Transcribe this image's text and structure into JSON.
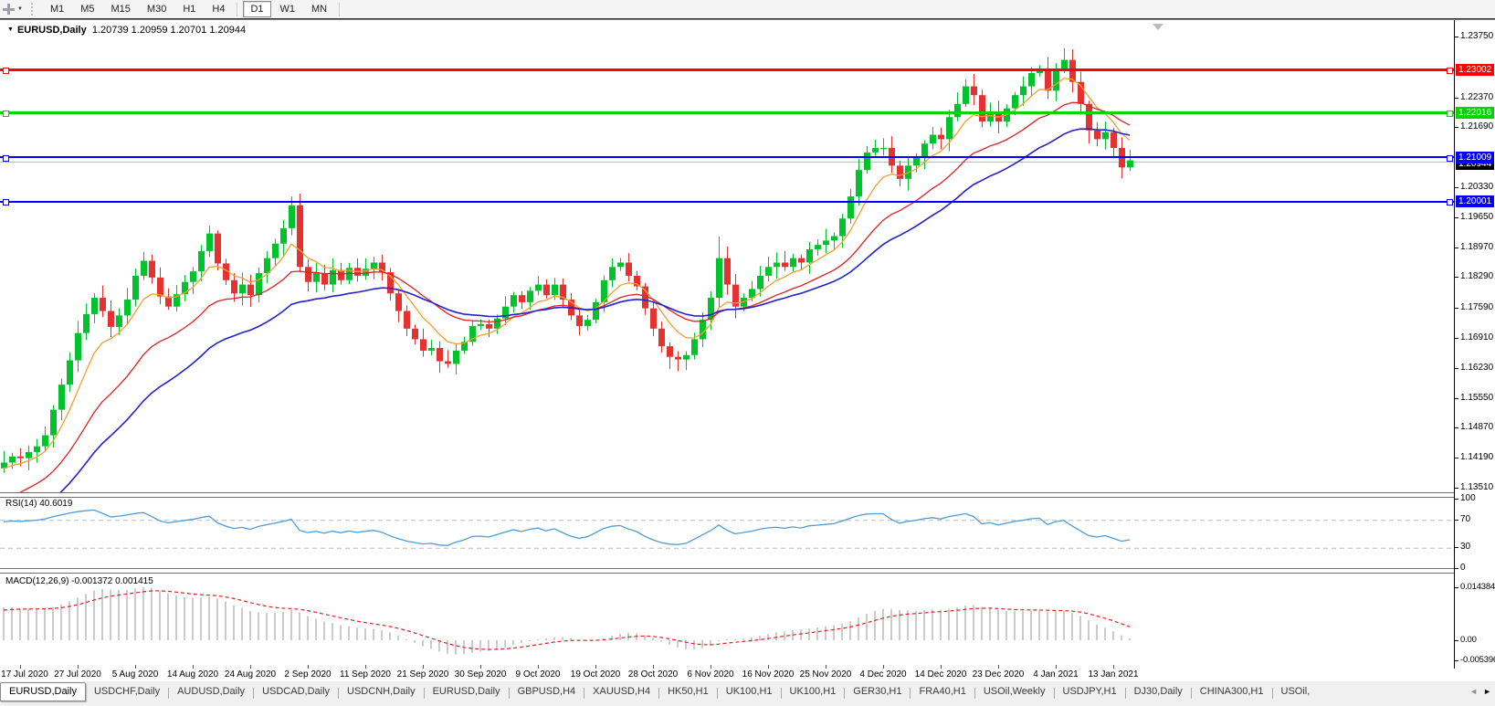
{
  "toolbar": {
    "timeframes": [
      "M1",
      "M5",
      "M15",
      "M30",
      "H1",
      "H4",
      "D1",
      "W1",
      "MN"
    ],
    "active_timeframe": "D1"
  },
  "header": {
    "caret": "▼",
    "symbol": "EURUSD,Daily",
    "ohlc_text": "1.20739 1.20959 1.20701 1.20944"
  },
  "colors": {
    "candle_up": "#00C22C",
    "candle_down": "#E63131",
    "ma_fast": "#F0A030",
    "ma_mid": "#DD2222",
    "ma_slow": "#2222CC",
    "rsi_line": "#4E9CD8",
    "macd_hist": "#CBCBCB",
    "macd_signal": "#DD2222",
    "level_red": "#FF0000",
    "level_green": "#00D500",
    "level_blue": "#0000FF",
    "current_badge": "#000000"
  },
  "chart_data": {
    "type": "candlestick",
    "symbol": "EURUSD",
    "timeframe": "Daily",
    "ohlc_current": {
      "open": "1.20739",
      "high": "1.20959",
      "low": "1.20701",
      "close": "1.20944"
    },
    "x_labels": [
      "17 Jul 2020",
      "27 Jul 2020",
      "5 Aug 2020",
      "14 Aug 2020",
      "24 Aug 2020",
      "2 Sep 2020",
      "11 Sep 2020",
      "21 Sep 2020",
      "30 Sep 2020",
      "9 Oct 2020",
      "19 Oct 2020",
      "28 Oct 2020",
      "6 Nov 2020",
      "16 Nov 2020",
      "25 Nov 2020",
      "4 Dec 2020",
      "14 Dec 2020",
      "23 Dec 2020",
      "4 Jan 2021",
      "13 Jan 2021"
    ],
    "first_label_index": 2,
    "candles_per_label": 7,
    "closes": [
      1.1408,
      1.1422,
      1.1418,
      1.1432,
      1.1445,
      1.147,
      1.1528,
      1.1585,
      1.164,
      1.1702,
      1.1745,
      1.1782,
      1.1752,
      1.1716,
      1.1742,
      1.1778,
      1.1832,
      1.1866,
      1.1828,
      1.1785,
      1.1762,
      1.179,
      1.1818,
      1.1842,
      1.1888,
      1.1928,
      1.186,
      1.1822,
      1.1792,
      1.1812,
      1.1788,
      1.1838,
      1.1872,
      1.1905,
      1.194,
      1.1992,
      1.1852,
      1.1818,
      1.1838,
      1.1812,
      1.1845,
      1.1822,
      1.185,
      1.1832,
      1.1848,
      1.1862,
      1.184,
      1.1792,
      1.1752,
      1.1712,
      1.1688,
      1.1662,
      1.1668,
      1.1638,
      1.1632,
      1.1662,
      1.1682,
      1.1718,
      1.1722,
      1.1712,
      1.1735,
      1.1762,
      1.1788,
      1.1772,
      1.1798,
      1.1812,
      1.1788,
      1.1812,
      1.1778,
      1.1742,
      1.1718,
      1.1732,
      1.1772,
      1.1822,
      1.1852,
      1.1862,
      1.1832,
      1.1808,
      1.1758,
      1.1712,
      1.1672,
      1.1648,
      1.1642,
      1.1652,
      1.1688,
      1.1732,
      1.1782,
      1.1872,
      1.1812,
      1.1762,
      1.1782,
      1.1802,
      1.1832,
      1.1852,
      1.1862,
      1.1852,
      1.1872,
      1.1862,
      1.1892,
      1.1902,
      1.1912,
      1.1922,
      1.1962,
      1.2012,
      1.2072,
      1.2112,
      1.2122,
      1.2122,
      1.2082,
      1.2052,
      1.2082,
      1.2102,
      1.2132,
      1.2152,
      1.2142,
      1.2192,
      1.2222,
      1.2262,
      1.2242,
      1.2182,
      1.2202,
      1.2182,
      1.2212,
      1.2242,
      1.2262,
      1.2292,
      1.2302,
      1.2252,
      1.2302,
      1.2322,
      1.2272,
      1.2222,
      1.2162,
      1.2142,
      1.2158,
      1.2122,
      1.2078,
      1.2094
    ],
    "first_open": 1.1395,
    "wick_overrides": {
      "35": {
        "h": 1.2012
      },
      "53": {
        "l": 1.1612
      },
      "81": {
        "l": 1.1621
      },
      "87": {
        "h": 1.1921
      },
      "126": {
        "h": 1.231
      },
      "129": {
        "h": 1.2349
      },
      "132": {
        "l": 1.2132
      }
    },
    "y_axis_ticks": [
      "1.23750",
      "1.22370",
      "1.21690",
      "1.20330",
      "1.19650",
      "1.18970",
      "1.18290",
      "1.17590",
      "1.16910",
      "1.16230",
      "1.15550",
      "1.14870",
      "1.14190",
      "1.13510"
    ],
    "levels": [
      {
        "label": "1.23002",
        "price": 1.23002,
        "color_key": "level_red",
        "thickness": 3
      },
      {
        "label": "1.22016",
        "price": 1.22016,
        "color_key": "level_green",
        "thickness": 3
      },
      {
        "label": "1.21009",
        "price": 1.21009,
        "color_key": "level_blue",
        "thickness": 2
      },
      {
        "label": "1.20001",
        "price": 1.20001,
        "color_key": "level_blue",
        "thickness": 2
      }
    ],
    "current_price": {
      "label": "1.20944",
      "value": 1.20944
    },
    "indicators": {
      "rsi": {
        "label": "RSI(14) 40.6019",
        "ticks": [
          {
            "v": 100,
            "label": "100"
          },
          {
            "v": 70,
            "label": "70"
          },
          {
            "v": 30,
            "label": "30"
          },
          {
            "v": 0,
            "label": "0"
          }
        ],
        "dashed_levels": [
          70,
          30
        ]
      },
      "macd": {
        "label": "MACD(12,26,9) -0.001372 0.001415",
        "ticks": [
          {
            "v": 0.014384,
            "label": "0.014384"
          },
          {
            "v": 0,
            "label": "0.00"
          },
          {
            "v": -0.005396,
            "label": "-0.005396"
          }
        ]
      }
    }
  },
  "tabs": {
    "items": [
      "EURUSD,Daily",
      "USDCHF,Daily",
      "AUDUSD,Daily",
      "USDCAD,Daily",
      "USDCNH,Daily",
      "EURUSD,Daily",
      "GBPUSD,H4",
      "XAUUSD,H4",
      "HK50,H1",
      "UK100,H1",
      "UK100,H1",
      "GER30,H1",
      "FRA40,H1",
      "USOil,Weekly",
      "USDJPY,H1",
      "DJ30,Daily",
      "CHINA300,H1",
      "USOil,"
    ],
    "active_index": 0,
    "arrow_left": "◄",
    "arrow_right": "►"
  }
}
